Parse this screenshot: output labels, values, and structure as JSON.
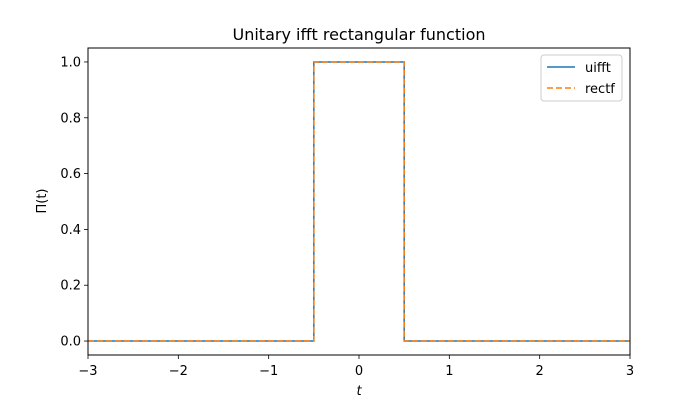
{
  "chart_data": {
    "type": "line",
    "title": "Unitary ifft rectangular function",
    "xlabel": "t",
    "ylabel": "Π(t)",
    "xlim": [
      -3,
      3
    ],
    "ylim": [
      -0.05,
      1.05
    ],
    "xticks": [
      -3,
      -2,
      -1,
      0,
      1,
      2,
      3
    ],
    "xtick_labels": [
      "−3",
      "−2",
      "−1",
      "0",
      "1",
      "2",
      "3"
    ],
    "yticks": [
      0.0,
      0.2,
      0.4,
      0.6,
      0.8,
      1.0
    ],
    "ytick_labels": [
      "0.0",
      "0.2",
      "0.4",
      "0.6",
      "0.8",
      "1.0"
    ],
    "grid": false,
    "legend_position": "top-right",
    "series": [
      {
        "name": "uifft",
        "color": "#1f77b4",
        "style": "solid",
        "x": [
          -3,
          -0.5,
          -0.5,
          0.5,
          0.5,
          3
        ],
        "y": [
          0,
          0,
          1,
          1,
          0,
          0
        ]
      },
      {
        "name": "rectf",
        "color": "#ff7f0e",
        "style": "dashed",
        "x": [
          -3,
          -0.5,
          -0.5,
          0.5,
          0.5,
          3
        ],
        "y": [
          0,
          0,
          1,
          1,
          0,
          0
        ]
      }
    ]
  }
}
